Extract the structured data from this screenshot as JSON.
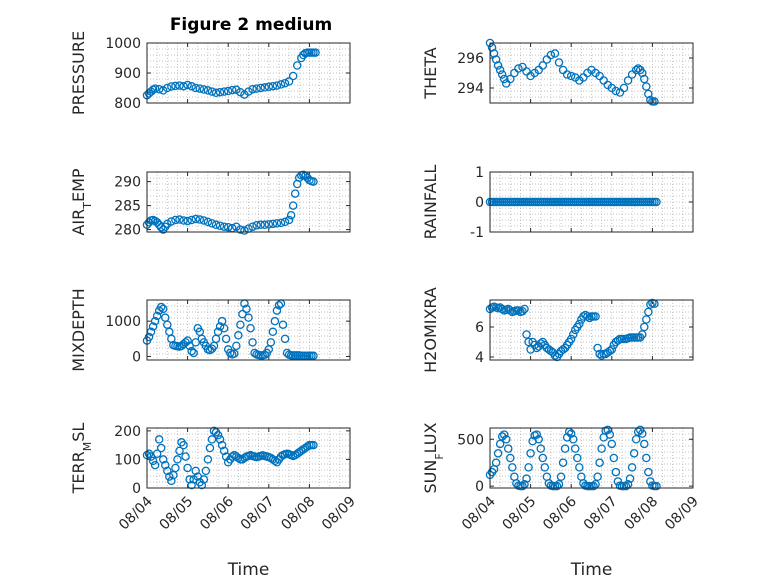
{
  "figure": {
    "title": "Figure 2 medium"
  },
  "chart_data": [
    {
      "type": "scatter",
      "ylabel": "PRESSURE",
      "ylim": [
        800,
        1000
      ],
      "yticks": [
        800,
        900,
        1000
      ],
      "xlabel": "",
      "xtick_labels": [],
      "x": [
        4.0,
        4.05,
        4.1,
        4.15,
        4.2,
        4.3,
        4.4,
        4.5,
        4.6,
        4.7,
        4.8,
        4.9,
        5.0,
        5.1,
        5.2,
        5.3,
        5.4,
        5.5,
        5.6,
        5.7,
        5.8,
        5.9,
        6.0,
        6.1,
        6.2,
        6.3,
        6.4,
        6.5,
        6.6,
        6.7,
        6.8,
        6.9,
        7.0,
        7.1,
        7.2,
        7.3,
        7.4,
        7.5,
        7.6,
        7.7,
        7.8,
        7.85,
        7.9,
        7.95,
        8.0,
        8.05,
        8.1,
        8.15
      ],
      "y": [
        826,
        832,
        838,
        844,
        848,
        846,
        842,
        850,
        855,
        857,
        858,
        856,
        860,
        856,
        850,
        848,
        845,
        842,
        838,
        834,
        836,
        838,
        840,
        843,
        844,
        836,
        828,
        838,
        846,
        848,
        850,
        852,
        854,
        856,
        858,
        862,
        866,
        872,
        890,
        925,
        950,
        960,
        966,
        968,
        968,
        968,
        968,
        968
      ]
    },
    {
      "type": "scatter",
      "ylabel": "THETA",
      "ylim": [
        293,
        297
      ],
      "yticks": [
        294,
        296
      ],
      "xlabel": "",
      "xtick_labels": [],
      "x": [
        4.0,
        4.05,
        4.1,
        4.15,
        4.2,
        4.25,
        4.3,
        4.35,
        4.4,
        4.5,
        4.6,
        4.7,
        4.8,
        4.9,
        5.0,
        5.1,
        5.2,
        5.3,
        5.4,
        5.5,
        5.6,
        5.7,
        5.8,
        5.9,
        6.0,
        6.1,
        6.2,
        6.3,
        6.4,
        6.5,
        6.6,
        6.7,
        6.8,
        6.9,
        7.0,
        7.1,
        7.2,
        7.3,
        7.4,
        7.5,
        7.6,
        7.65,
        7.7,
        7.75,
        7.8,
        7.85,
        7.9,
        7.95,
        8.0,
        8.05
      ],
      "y": [
        297.0,
        296.7,
        296.3,
        295.9,
        295.5,
        295.2,
        294.9,
        294.6,
        294.3,
        294.6,
        295.0,
        295.3,
        295.4,
        295.1,
        294.8,
        295.0,
        295.2,
        295.5,
        295.9,
        296.2,
        296.3,
        295.7,
        295.2,
        294.9,
        294.8,
        294.7,
        294.5,
        294.7,
        295.0,
        295.2,
        295.0,
        294.8,
        294.5,
        294.2,
        294.0,
        293.8,
        293.7,
        294.0,
        294.5,
        294.9,
        295.2,
        295.3,
        295.2,
        295.0,
        294.6,
        294.1,
        293.6,
        293.2,
        293.1,
        293.1
      ]
    },
    {
      "type": "scatter",
      "ylabel": "AIR_TEMP",
      "ylim": [
        279.5,
        292
      ],
      "yticks": [
        280,
        285,
        290
      ],
      "xlabel": "",
      "xtick_labels": [],
      "x": [
        4.0,
        4.05,
        4.1,
        4.15,
        4.2,
        4.25,
        4.3,
        4.35,
        4.4,
        4.45,
        4.5,
        4.6,
        4.7,
        4.8,
        4.9,
        5.0,
        5.1,
        5.2,
        5.3,
        5.4,
        5.5,
        5.6,
        5.7,
        5.8,
        5.9,
        6.0,
        6.1,
        6.2,
        6.3,
        6.4,
        6.5,
        6.6,
        6.7,
        6.8,
        6.9,
        7.0,
        7.1,
        7.2,
        7.3,
        7.4,
        7.5,
        7.55,
        7.6,
        7.65,
        7.7,
        7.75,
        7.8,
        7.85,
        7.9,
        7.95,
        8.0,
        8.05,
        8.1
      ],
      "y": [
        281.0,
        281.5,
        281.9,
        282.0,
        281.8,
        281.5,
        281.0,
        280.5,
        280.0,
        280.6,
        281.2,
        281.7,
        282.0,
        282.1,
        281.9,
        281.8,
        282.0,
        282.2,
        282.1,
        281.9,
        281.6,
        281.3,
        281.0,
        280.8,
        280.6,
        280.5,
        280.3,
        280.6,
        280.0,
        279.8,
        280.2,
        280.6,
        280.9,
        281.0,
        281.0,
        281.1,
        281.2,
        281.3,
        281.4,
        281.6,
        282.0,
        283.0,
        285.0,
        287.5,
        289.5,
        290.8,
        291.3,
        291.4,
        291.2,
        290.8,
        290.3,
        290.1,
        290.0
      ]
    },
    {
      "type": "scatter",
      "ylabel": "RAINFALL",
      "ylim": [
        -1,
        1
      ],
      "yticks": [
        -1,
        0,
        1
      ],
      "xlabel": "",
      "xtick_labels": [],
      "x": [
        4.0,
        4.05,
        4.1,
        4.15,
        4.2,
        4.25,
        4.3,
        4.35,
        4.4,
        4.45,
        4.5,
        4.55,
        4.6,
        4.65,
        4.7,
        4.75,
        4.8,
        4.85,
        4.9,
        4.95,
        5.0,
        5.05,
        5.1,
        5.15,
        5.2,
        5.25,
        5.3,
        5.35,
        5.4,
        5.45,
        5.5,
        5.55,
        5.6,
        5.65,
        5.7,
        5.75,
        5.8,
        5.85,
        5.9,
        5.95,
        6.0,
        6.05,
        6.1,
        6.15,
        6.2,
        6.25,
        6.3,
        6.35,
        6.4,
        6.45,
        6.5,
        6.55,
        6.6,
        6.65,
        6.7,
        6.75,
        6.8,
        6.85,
        6.9,
        6.95,
        7.0,
        7.05,
        7.1,
        7.15,
        7.2,
        7.25,
        7.3,
        7.35,
        7.4,
        7.45,
        7.5,
        7.55,
        7.6,
        7.65,
        7.7,
        7.75,
        7.8,
        7.85,
        7.9,
        7.95,
        8.0,
        8.05,
        8.1
      ],
      "y": [
        0,
        0,
        0,
        0,
        0,
        0,
        0,
        0,
        0,
        0,
        0,
        0,
        0,
        0,
        0,
        0,
        0,
        0,
        0,
        0,
        0,
        0,
        0,
        0,
        0,
        0,
        0,
        0,
        0,
        0,
        0,
        0,
        0,
        0,
        0,
        0,
        0,
        0,
        0,
        0,
        0,
        0,
        0,
        0,
        0,
        0,
        0,
        0,
        0,
        0,
        0,
        0,
        0,
        0,
        0,
        0,
        0,
        0,
        0,
        0,
        0,
        0,
        0,
        0,
        0,
        0,
        0,
        0,
        0,
        0,
        0,
        0,
        0,
        0,
        0,
        0,
        0,
        0,
        0,
        0,
        0,
        0,
        0
      ]
    },
    {
      "type": "scatter",
      "ylabel": "MIXDEPTH",
      "ylim": [
        -100,
        1600
      ],
      "yticks": [
        0,
        1000
      ],
      "xlabel": "",
      "xtick_labels": [],
      "x": [
        4.0,
        4.05,
        4.1,
        4.15,
        4.2,
        4.25,
        4.3,
        4.35,
        4.4,
        4.45,
        4.5,
        4.55,
        4.6,
        4.65,
        4.7,
        4.75,
        4.8,
        4.85,
        4.9,
        4.95,
        5.0,
        5.05,
        5.1,
        5.15,
        5.2,
        5.25,
        5.3,
        5.35,
        5.4,
        5.45,
        5.5,
        5.55,
        5.6,
        5.65,
        5.7,
        5.75,
        5.8,
        5.85,
        5.9,
        5.95,
        6.0,
        6.05,
        6.1,
        6.15,
        6.2,
        6.25,
        6.3,
        6.35,
        6.4,
        6.45,
        6.5,
        6.55,
        6.6,
        6.65,
        6.7,
        6.75,
        6.8,
        6.85,
        6.9,
        6.95,
        7.0,
        7.05,
        7.1,
        7.15,
        7.2,
        7.25,
        7.3,
        7.35,
        7.4,
        7.45,
        7.5,
        7.55,
        7.6,
        7.65,
        7.7,
        7.75,
        7.8,
        7.85,
        7.9,
        7.95,
        8.0,
        8.05,
        8.1
      ],
      "y": [
        450,
        550,
        700,
        850,
        1000,
        1150,
        1300,
        1400,
        1350,
        1100,
        900,
        700,
        500,
        320,
        300,
        290,
        280,
        300,
        350,
        400,
        450,
        300,
        150,
        100,
        400,
        800,
        700,
        500,
        400,
        300,
        200,
        180,
        220,
        300,
        500,
        700,
        850,
        1000,
        800,
        500,
        200,
        100,
        60,
        80,
        300,
        600,
        900,
        1200,
        1500,
        1350,
        1100,
        800,
        400,
        100,
        60,
        40,
        30,
        30,
        50,
        100,
        200,
        400,
        700,
        1000,
        1300,
        1450,
        1500,
        900,
        500,
        100,
        50,
        30,
        30,
        30,
        30,
        30,
        20,
        20,
        20,
        20,
        20,
        20,
        20
      ]
    },
    {
      "type": "scatter",
      "ylabel": "H2OMIXRA",
      "ylim": [
        3.8,
        7.8
      ],
      "yticks": [
        4,
        6
      ],
      "xlabel": "",
      "xtick_labels": [],
      "x": [
        4.0,
        4.05,
        4.1,
        4.15,
        4.2,
        4.25,
        4.3,
        4.35,
        4.4,
        4.45,
        4.5,
        4.55,
        4.6,
        4.65,
        4.7,
        4.75,
        4.8,
        4.85,
        4.9,
        4.95,
        5.0,
        5.05,
        5.1,
        5.15,
        5.2,
        5.25,
        5.3,
        5.35,
        5.4,
        5.45,
        5.5,
        5.55,
        5.6,
        5.65,
        5.7,
        5.75,
        5.8,
        5.85,
        5.9,
        5.95,
        6.0,
        6.05,
        6.1,
        6.15,
        6.2,
        6.25,
        6.3,
        6.35,
        6.4,
        6.45,
        6.5,
        6.55,
        6.6,
        6.65,
        6.7,
        6.75,
        6.8,
        6.85,
        6.9,
        6.95,
        7.0,
        7.05,
        7.1,
        7.15,
        7.2,
        7.25,
        7.3,
        7.35,
        7.4,
        7.45,
        7.5,
        7.55,
        7.6,
        7.65,
        7.7,
        7.75,
        7.8,
        7.85,
        7.9,
        7.95,
        8.0,
        8.05
      ],
      "y": [
        7.2,
        7.3,
        7.35,
        7.3,
        7.25,
        7.3,
        7.2,
        7.1,
        7.15,
        7.2,
        7.1,
        7.0,
        7.05,
        7.1,
        7.1,
        7.0,
        7.05,
        7.2,
        5.5,
        5.0,
        4.5,
        5.0,
        4.8,
        4.6,
        4.7,
        4.9,
        5.0,
        4.8,
        4.6,
        4.5,
        4.4,
        4.3,
        4.1,
        4.0,
        4.2,
        4.4,
        4.5,
        4.6,
        4.8,
        5.0,
        5.2,
        5.5,
        5.8,
        6.0,
        6.2,
        6.5,
        6.7,
        6.8,
        6.7,
        6.6,
        6.7,
        6.7,
        6.7,
        4.6,
        4.2,
        4.1,
        4.2,
        4.2,
        4.3,
        4.4,
        4.5,
        4.8,
        5.0,
        5.1,
        5.2,
        5.2,
        5.2,
        5.2,
        5.25,
        5.3,
        5.3,
        5.3,
        5.3,
        5.3,
        5.3,
        5.5,
        6.0,
        6.5,
        7.0,
        7.5,
        7.6,
        7.55
      ]
    },
    {
      "type": "scatter",
      "ylabel": "TERR_MSL",
      "ylim": [
        0,
        210
      ],
      "yticks": [
        0,
        100,
        200
      ],
      "xlabel": "Time",
      "xlim": [
        4,
        9
      ],
      "xtick_labels": [
        "08/04",
        "08/05",
        "08/06",
        "08/07",
        "08/08",
        "08/09"
      ],
      "x": [
        4.0,
        4.05,
        4.1,
        4.15,
        4.2,
        4.25,
        4.3,
        4.35,
        4.4,
        4.45,
        4.5,
        4.55,
        4.6,
        4.65,
        4.7,
        4.75,
        4.8,
        4.85,
        4.9,
        4.95,
        5.0,
        5.05,
        5.1,
        5.15,
        5.2,
        5.25,
        5.3,
        5.35,
        5.4,
        5.45,
        5.5,
        5.55,
        5.6,
        5.65,
        5.7,
        5.75,
        5.8,
        5.85,
        5.9,
        5.95,
        6.0,
        6.05,
        6.1,
        6.15,
        6.2,
        6.25,
        6.3,
        6.35,
        6.4,
        6.45,
        6.5,
        6.55,
        6.6,
        6.65,
        6.7,
        6.75,
        6.8,
        6.85,
        6.9,
        6.95,
        7.0,
        7.05,
        7.1,
        7.15,
        7.2,
        7.25,
        7.3,
        7.35,
        7.4,
        7.45,
        7.5,
        7.55,
        7.6,
        7.65,
        7.7,
        7.75,
        7.8,
        7.85,
        7.9,
        7.95,
        8.0,
        8.05,
        8.1
      ],
      "y": [
        115,
        120,
        110,
        95,
        80,
        120,
        170,
        140,
        100,
        80,
        60,
        40,
        25,
        45,
        70,
        100,
        130,
        160,
        150,
        110,
        70,
        30,
        10,
        30,
        60,
        40,
        20,
        10,
        30,
        60,
        100,
        140,
        170,
        200,
        195,
        185,
        170,
        150,
        130,
        110,
        90,
        100,
        110,
        115,
        110,
        105,
        100,
        100,
        105,
        110,
        112,
        115,
        112,
        110,
        108,
        110,
        112,
        114,
        112,
        110,
        108,
        105,
        100,
        95,
        90,
        100,
        110,
        115,
        118,
        120,
        118,
        115,
        112,
        115,
        120,
        125,
        130,
        135,
        140,
        145,
        150,
        150,
        150
      ]
    },
    {
      "type": "scatter",
      "ylabel": "SUN_FLUX",
      "ylim": [
        -20,
        620
      ],
      "yticks": [
        0,
        500
      ],
      "xlabel": "Time",
      "xlim": [
        4,
        9
      ],
      "xtick_labels": [
        "08/04",
        "08/05",
        "08/06",
        "08/07",
        "08/08",
        "08/09"
      ],
      "x": [
        4.0,
        4.05,
        4.1,
        4.15,
        4.2,
        4.25,
        4.3,
        4.35,
        4.4,
        4.45,
        4.5,
        4.55,
        4.6,
        4.65,
        4.7,
        4.75,
        4.8,
        4.85,
        4.9,
        4.95,
        5.0,
        5.05,
        5.1,
        5.15,
        5.2,
        5.25,
        5.3,
        5.35,
        5.4,
        5.45,
        5.5,
        5.55,
        5.6,
        5.65,
        5.7,
        5.75,
        5.8,
        5.85,
        5.9,
        5.95,
        6.0,
        6.05,
        6.1,
        6.15,
        6.2,
        6.25,
        6.3,
        6.35,
        6.4,
        6.45,
        6.5,
        6.55,
        6.6,
        6.65,
        6.7,
        6.75,
        6.8,
        6.85,
        6.9,
        6.95,
        7.0,
        7.05,
        7.1,
        7.15,
        7.2,
        7.25,
        7.3,
        7.35,
        7.4,
        7.45,
        7.5,
        7.55,
        7.6,
        7.65,
        7.7,
        7.75,
        7.8,
        7.85,
        7.9,
        7.95,
        8.0,
        8.05,
        8.1
      ],
      "y": [
        120,
        150,
        180,
        250,
        350,
        450,
        530,
        550,
        500,
        400,
        300,
        200,
        100,
        30,
        5,
        0,
        0,
        20,
        80,
        200,
        350,
        480,
        540,
        550,
        500,
        400,
        300,
        200,
        100,
        30,
        5,
        0,
        0,
        0,
        20,
        100,
        250,
        400,
        520,
        580,
        560,
        500,
        400,
        300,
        200,
        100,
        30,
        5,
        0,
        0,
        0,
        0,
        20,
        100,
        250,
        400,
        520,
        590,
        600,
        550,
        450,
        300,
        150,
        50,
        5,
        0,
        0,
        0,
        20,
        80,
        200,
        350,
        500,
        580,
        600,
        560,
        450,
        300,
        150,
        50,
        5,
        0,
        0
      ]
    }
  ]
}
